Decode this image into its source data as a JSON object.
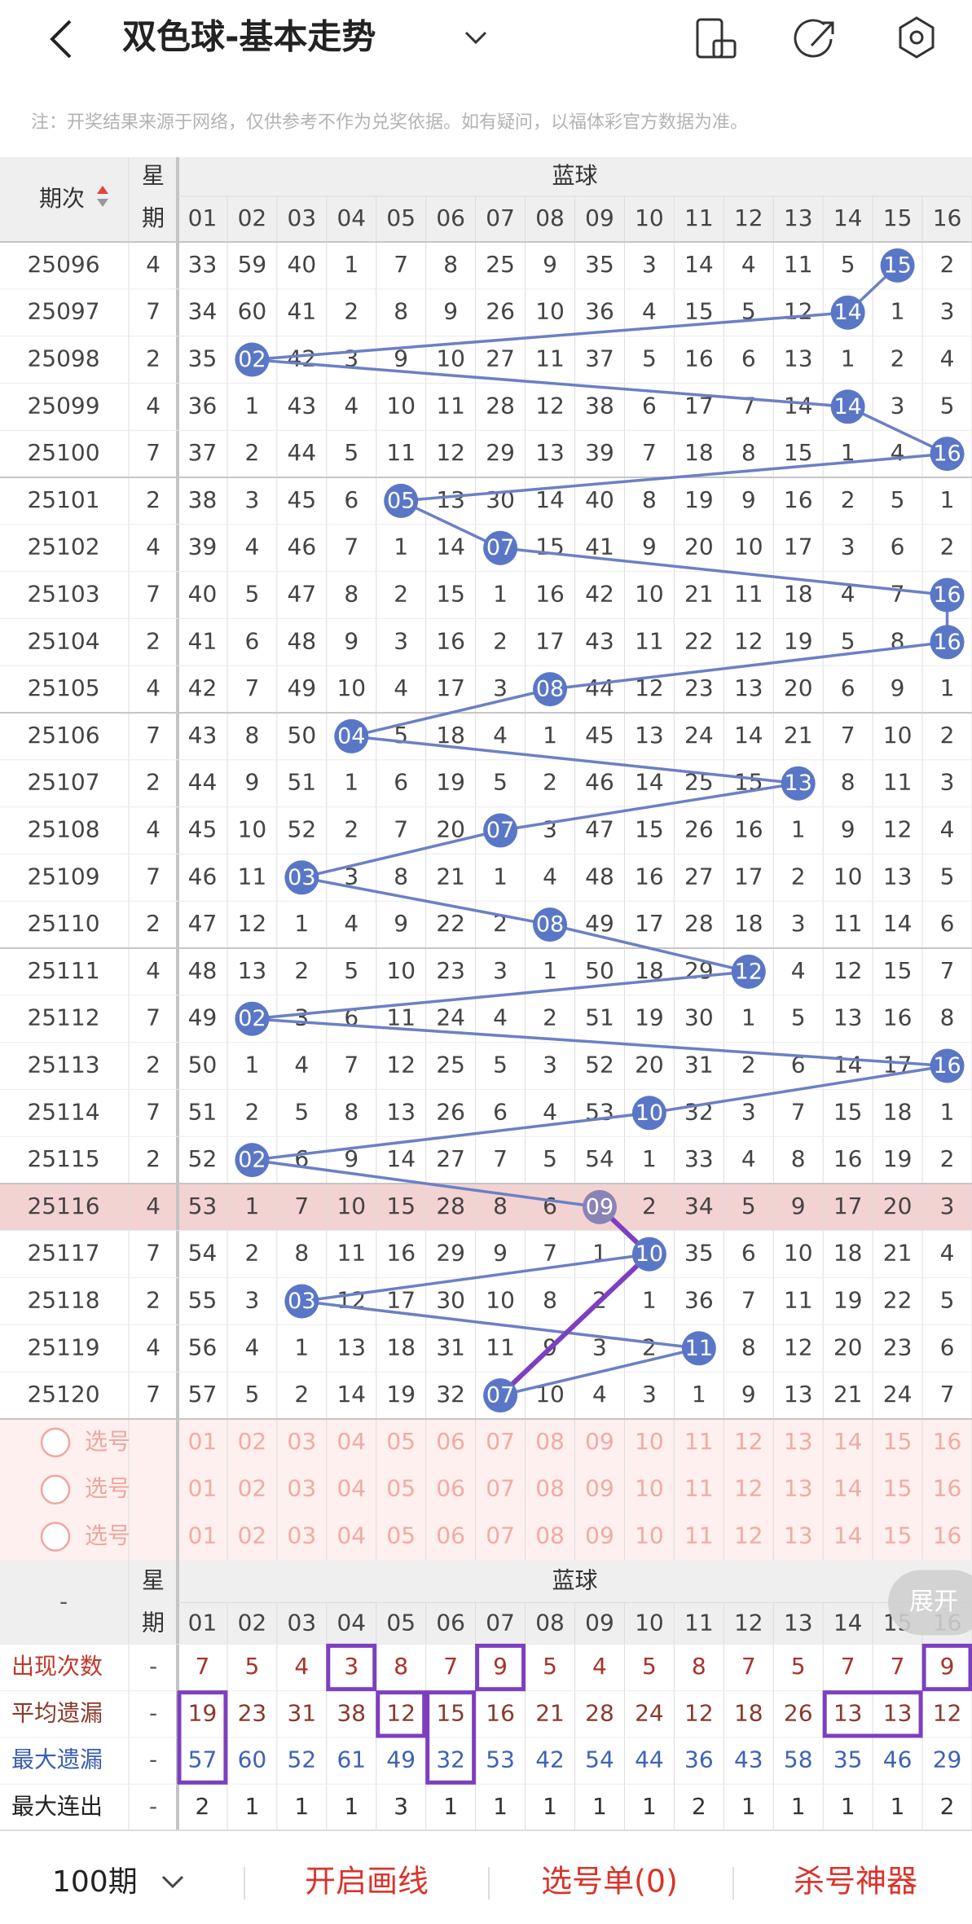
{
  "header": {
    "title": "双色球-基本走势",
    "note": "注：开奖结果来源于网络，仅供参考不作为兑奖依据。如有疑问，以福体彩官方数据为准。"
  },
  "table": {
    "period_label": "期次",
    "weekday_label": "星期",
    "group_label": "蓝球",
    "columns": [
      "01",
      "02",
      "03",
      "04",
      "05",
      "06",
      "07",
      "08",
      "09",
      "10",
      "11",
      "12",
      "13",
      "14",
      "15",
      "16"
    ],
    "rows": [
      {
        "issue": 25096,
        "weekday": 4,
        "cells": [
          33,
          59,
          40,
          1,
          7,
          8,
          25,
          9,
          35,
          3,
          14,
          4,
          11,
          5,
          {
            "ball": "15"
          },
          2
        ]
      },
      {
        "issue": 25097,
        "weekday": 7,
        "cells": [
          34,
          60,
          41,
          2,
          8,
          9,
          26,
          10,
          36,
          4,
          15,
          5,
          12,
          {
            "ball": "14"
          },
          1,
          3
        ]
      },
      {
        "issue": 25098,
        "weekday": 2,
        "cells": [
          35,
          {
            "ball": "02"
          },
          42,
          3,
          9,
          10,
          27,
          11,
          37,
          5,
          16,
          6,
          13,
          1,
          2,
          4
        ]
      },
      {
        "issue": 25099,
        "weekday": 4,
        "cells": [
          36,
          1,
          43,
          4,
          10,
          11,
          28,
          12,
          38,
          6,
          17,
          7,
          14,
          {
            "ball": "14"
          },
          3,
          5
        ]
      },
      {
        "issue": 25100,
        "weekday": 7,
        "cells": [
          37,
          2,
          44,
          5,
          11,
          12,
          29,
          13,
          39,
          7,
          18,
          8,
          15,
          1,
          4,
          {
            "ball": "16"
          }
        ]
      },
      {
        "issue": 25101,
        "weekday": 2,
        "cells": [
          38,
          3,
          45,
          6,
          {
            "ball": "05"
          },
          13,
          30,
          14,
          40,
          8,
          19,
          9,
          16,
          2,
          5,
          1
        ]
      },
      {
        "issue": 25102,
        "weekday": 4,
        "cells": [
          39,
          4,
          46,
          7,
          1,
          14,
          {
            "ball": "07"
          },
          15,
          41,
          9,
          20,
          10,
          17,
          3,
          6,
          2
        ]
      },
      {
        "issue": 25103,
        "weekday": 7,
        "cells": [
          40,
          5,
          47,
          8,
          2,
          15,
          1,
          16,
          42,
          10,
          21,
          11,
          18,
          4,
          7,
          {
            "ball": "16"
          }
        ]
      },
      {
        "issue": 25104,
        "weekday": 2,
        "cells": [
          41,
          6,
          48,
          9,
          3,
          16,
          2,
          17,
          43,
          11,
          22,
          12,
          19,
          5,
          8,
          {
            "ball": "16"
          }
        ]
      },
      {
        "issue": 25105,
        "weekday": 4,
        "cells": [
          42,
          7,
          49,
          10,
          4,
          17,
          3,
          {
            "ball": "08"
          },
          44,
          12,
          23,
          13,
          20,
          6,
          9,
          1
        ]
      },
      {
        "issue": 25106,
        "weekday": 7,
        "cells": [
          43,
          8,
          50,
          {
            "ball": "04"
          },
          5,
          18,
          4,
          1,
          45,
          13,
          24,
          14,
          21,
          7,
          10,
          2
        ]
      },
      {
        "issue": 25107,
        "weekday": 2,
        "cells": [
          44,
          9,
          51,
          1,
          6,
          19,
          5,
          2,
          46,
          14,
          25,
          15,
          {
            "ball": "13"
          },
          8,
          11,
          3
        ]
      },
      {
        "issue": 25108,
        "weekday": 4,
        "cells": [
          45,
          10,
          52,
          2,
          7,
          20,
          {
            "ball": "07"
          },
          3,
          47,
          15,
          26,
          16,
          1,
          9,
          12,
          4
        ]
      },
      {
        "issue": 25109,
        "weekday": 7,
        "cells": [
          46,
          11,
          {
            "ball": "03"
          },
          3,
          8,
          21,
          1,
          4,
          48,
          16,
          27,
          17,
          2,
          10,
          13,
          5
        ]
      },
      {
        "issue": 25110,
        "weekday": 2,
        "cells": [
          47,
          12,
          1,
          4,
          9,
          22,
          2,
          {
            "ball": "08"
          },
          49,
          17,
          28,
          18,
          3,
          11,
          14,
          6
        ]
      },
      {
        "issue": 25111,
        "weekday": 4,
        "cells": [
          48,
          13,
          2,
          5,
          10,
          23,
          3,
          1,
          50,
          18,
          29,
          {
            "ball": "12"
          },
          4,
          12,
          15,
          7
        ]
      },
      {
        "issue": 25112,
        "weekday": 7,
        "cells": [
          49,
          {
            "ball": "02"
          },
          3,
          6,
          11,
          24,
          4,
          2,
          51,
          19,
          30,
          1,
          5,
          13,
          16,
          8
        ]
      },
      {
        "issue": 25113,
        "weekday": 2,
        "cells": [
          50,
          1,
          4,
          7,
          12,
          25,
          5,
          3,
          52,
          20,
          31,
          2,
          6,
          14,
          17,
          {
            "ball": "16"
          }
        ]
      },
      {
        "issue": 25114,
        "weekday": 7,
        "cells": [
          51,
          2,
          5,
          8,
          13,
          26,
          6,
          4,
          53,
          {
            "ball": "10"
          },
          32,
          3,
          7,
          15,
          18,
          1
        ]
      },
      {
        "issue": 25115,
        "weekday": 2,
        "cells": [
          52,
          {
            "ball": "02"
          },
          6,
          9,
          14,
          27,
          7,
          5,
          54,
          1,
          33,
          4,
          8,
          16,
          19,
          2
        ]
      },
      {
        "issue": 25116,
        "weekday": 4,
        "highlighted": true,
        "cells": [
          53,
          1,
          7,
          10,
          15,
          28,
          8,
          6,
          {
            "ball": "09"
          },
          2,
          34,
          5,
          9,
          17,
          20,
          3
        ]
      },
      {
        "issue": 25117,
        "weekday": 7,
        "cells": [
          54,
          2,
          8,
          11,
          16,
          29,
          9,
          7,
          1,
          {
            "ball": "10"
          },
          35,
          6,
          10,
          18,
          21,
          4
        ]
      },
      {
        "issue": 25118,
        "weekday": 2,
        "cells": [
          55,
          3,
          {
            "ball": "03"
          },
          12,
          17,
          30,
          10,
          8,
          2,
          1,
          36,
          7,
          11,
          19,
          22,
          5
        ]
      },
      {
        "issue": 25119,
        "weekday": 4,
        "cells": [
          56,
          4,
          1,
          13,
          18,
          31,
          11,
          9,
          3,
          2,
          {
            "ball": "11"
          },
          8,
          12,
          20,
          23,
          6
        ]
      },
      {
        "issue": 25120,
        "weekday": 7,
        "cells": [
          57,
          5,
          2,
          14,
          19,
          32,
          {
            "ball": "07"
          },
          10,
          4,
          3,
          1,
          9,
          13,
          21,
          24,
          7
        ]
      }
    ],
    "select_rows": [
      "选号",
      "选号",
      "选号"
    ]
  },
  "stats": {
    "blank": "-",
    "expand": "展开",
    "rows": [
      {
        "label": "出现次数",
        "weekday": "-",
        "values": [
          7,
          5,
          4,
          3,
          8,
          7,
          9,
          5,
          4,
          5,
          8,
          7,
          5,
          7,
          7,
          9
        ]
      },
      {
        "label": "平均遗漏",
        "weekday": "-",
        "values": [
          19,
          23,
          31,
          38,
          12,
          15,
          16,
          21,
          28,
          24,
          12,
          18,
          26,
          13,
          13,
          12
        ]
      },
      {
        "label": "最大遗漏",
        "weekday": "-",
        "values": [
          57,
          60,
          52,
          61,
          49,
          32,
          53,
          42,
          54,
          44,
          36,
          43,
          58,
          35,
          46,
          29
        ]
      },
      {
        "label": "最大连出",
        "weekday": "-",
        "values": [
          2,
          1,
          1,
          1,
          3,
          1,
          1,
          1,
          1,
          1,
          2,
          1,
          1,
          1,
          1,
          2
        ]
      }
    ]
  },
  "footer": {
    "period": "100期",
    "draw": "开启画线",
    "list": "选号单(0)",
    "kill": "杀号神器"
  }
}
